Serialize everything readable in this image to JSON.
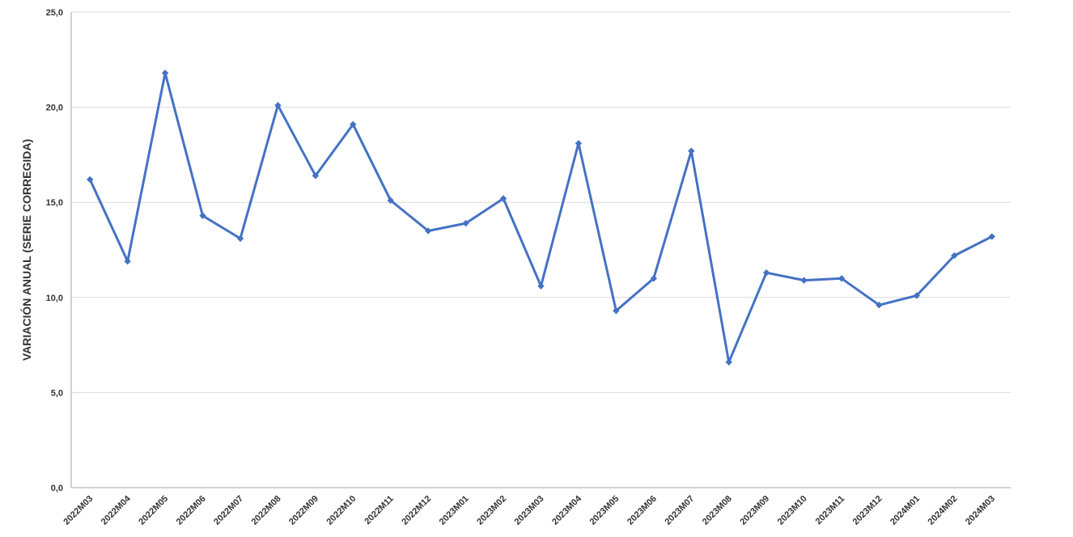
{
  "chart_data": {
    "type": "line",
    "title": "",
    "xlabel": "",
    "ylabel": "VARIACIÓN ANUAL (SERIE CORREGIDA)",
    "categories": [
      "2022M03",
      "2022M04",
      "2022M05",
      "2022M06",
      "2022M07",
      "2022M08",
      "2022M09",
      "2022M10",
      "2022M11",
      "2022M12",
      "2023M01",
      "2023M02",
      "2023M03",
      "2023M04",
      "2023M05",
      "2023M06",
      "2023M07",
      "2023M08",
      "2023M09",
      "2023M10",
      "2023M11",
      "2023M12",
      "2024M01",
      "2024M02",
      "2024M03"
    ],
    "series": [
      {
        "values": [
          16.2,
          11.9,
          21.8,
          14.3,
          13.1,
          20.1,
          16.4,
          19.1,
          15.1,
          13.5,
          13.9,
          15.2,
          10.6,
          18.1,
          9.3,
          11.0,
          17.7,
          6.6,
          11.3,
          10.9,
          11.0,
          9.6,
          10.1,
          12.2,
          13.2
        ],
        "color": "#4472C4"
      }
    ],
    "ylim": [
      0,
      25
    ],
    "yticks": [
      "0,0",
      "5,0",
      "10,0",
      "15,0",
      "20,0",
      "25,0"
    ],
    "grid": true,
    "legend": "none"
  }
}
